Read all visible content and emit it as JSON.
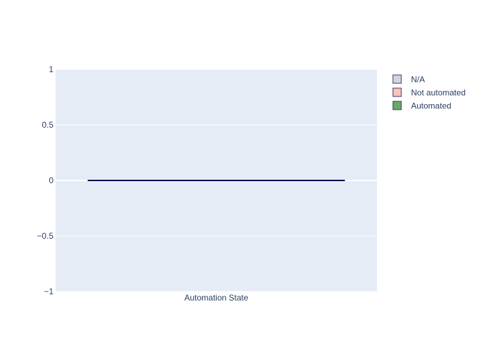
{
  "chart_data": {
    "type": "bar",
    "barmode": "stack",
    "categories": [
      "Automation State"
    ],
    "series": [
      {
        "name": "N/A",
        "values": [
          0
        ],
        "color": "#d3d3dd"
      },
      {
        "name": "Not automated",
        "values": [
          0
        ],
        "color": "#ffc0c0"
      },
      {
        "name": "Automated",
        "values": [
          0
        ],
        "color": "#66aa66"
      }
    ],
    "series_outline_color": "#383a5a",
    "bar_line_color": "#0a0a4a",
    "ylim": [
      -1,
      1
    ],
    "yticks": [
      1,
      0.5,
      0,
      -0.5,
      -1
    ],
    "ytick_labels": [
      "1",
      "0.5",
      "0",
      "−0.5",
      "−1"
    ],
    "plot_background": "#e5ecf6",
    "gridline_color": "#ffffff",
    "grid": true,
    "legend_position": "top-right",
    "title": "",
    "xlabel": "",
    "ylabel": ""
  }
}
